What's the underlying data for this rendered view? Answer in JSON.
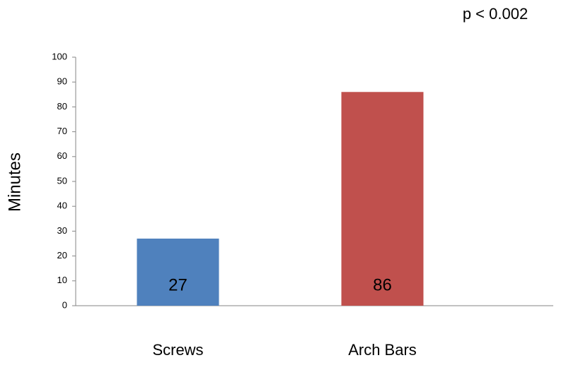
{
  "chart_data": {
    "type": "bar",
    "annotation": "p < 0.002",
    "y_label": "Minutes",
    "categories": [
      "Screws",
      "Arch Bars"
    ],
    "values": [
      27,
      86
    ],
    "colors": [
      "#4f81bd",
      "#c0504d"
    ],
    "ylim": [
      0,
      100
    ],
    "yticks": [
      0,
      10,
      20,
      30,
      40,
      50,
      60,
      70,
      80,
      90,
      100
    ],
    "grid": false
  }
}
